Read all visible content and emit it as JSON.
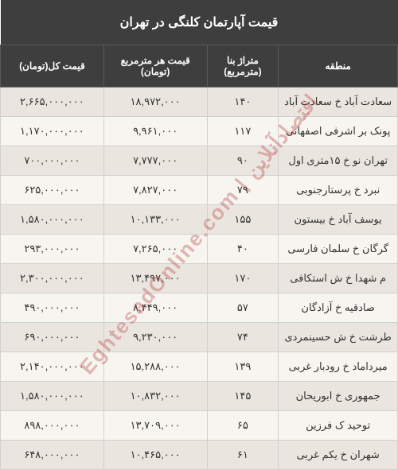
{
  "title": "قیمت آپارتمان کلنگی در تهران",
  "columns": {
    "region": "منطقه",
    "area": "متراژ بنا (مترمربع)",
    "price_per_m": "قیمت هر مترمربع (تومان)",
    "total_price": "قیمت کل(تومان)"
  },
  "rows": [
    {
      "region": "سعادت آباد خ سعادت آباد",
      "area": "۱۴۰",
      "ppm": "۱۸,۹۷۲,۰۰۰",
      "total": "۲,۶۶۵,۰۰۰,۰۰۰"
    },
    {
      "region": "پونک بر اشرفی اصفهانی",
      "area": "۱۱۷",
      "ppm": "۹,۹۶۱,۰۰۰",
      "total": "۱,۱۷۰,۰۰۰,۰۰۰"
    },
    {
      "region": "تهران نو خ ۱۵متری اول",
      "area": "۹۰",
      "ppm": "۷,۷۷۷,۰۰۰",
      "total": "۷۰۰,۰۰۰,۰۰۰"
    },
    {
      "region": "نبرد خ پرستارجنوبی",
      "area": "۷۹",
      "ppm": "۷,۸۲۷,۰۰۰",
      "total": "۶۲۵,۰۰۰,۰۰۰"
    },
    {
      "region": "یوسف آباد خ بیستون",
      "area": "۱۵۵",
      "ppm": "۱۰,۱۳۳,۰۰۰",
      "total": "۱,۵۸۰,۰۰۰,۰۰۰"
    },
    {
      "region": "گرگان خ سلمان فارسی",
      "area": "۴۰",
      "ppm": "۷,۲۶۵,۰۰۰",
      "total": "۲۹۳,۰۰۰,۰۰۰"
    },
    {
      "region": "م شهدا خ ش استکافی",
      "area": "۱۷۰",
      "ppm": "۱۳,۴۹۷,۰۰۰",
      "total": "۲,۳۰۰,۰۰۰,۰۰۰"
    },
    {
      "region": "صادقیه خ آزادگان",
      "area": "۵۷",
      "ppm": "۸,۴۴۹,۰۰۰",
      "total": "۴۹۰,۰۰۰,۰۰۰"
    },
    {
      "region": "طرشت خ ش حسینمردی",
      "area": "۷۴",
      "ppm": "۹,۲۳۰,۰۰۰",
      "total": "۶۹۰,۰۰۰,۰۰۰"
    },
    {
      "region": "میرداماد خ رودبار غربی",
      "area": "۱۳۹",
      "ppm": "۱۵,۲۸۸,۰۰۰",
      "total": "۲,۱۴۰,۰۰۰,۰۰۰"
    },
    {
      "region": "جمهوری خ ابوریحان",
      "area": "۱۴۵",
      "ppm": "۱۰,۸۳۲,۰۰۰",
      "total": "۱,۵۸۰,۰۰۰,۰۰۰"
    },
    {
      "region": "توحید ک فرزین",
      "area": "۶۵",
      "ppm": "۱۳,۷۰۹,۰۰۰",
      "total": "۸۹۸,۰۰۰,۰۰۰"
    },
    {
      "region": "شهران خ یکم غربی",
      "area": "۶۱",
      "ppm": "۱۰,۴۶۵,۰۰۰",
      "total": "۶۴۸,۰۰۰,۰۰۰"
    }
  ],
  "watermark": "EghtesadOnline.com | اقتصادآنلاین",
  "colors": {
    "header_bg": "#3e3e3e",
    "header_text": "#ffffff",
    "row_even": "#eae6df",
    "row_odd": "#f7f5f0",
    "border": "#d0d0d0",
    "text": "#333333",
    "watermark": "rgba(180,60,60,0.35)"
  }
}
